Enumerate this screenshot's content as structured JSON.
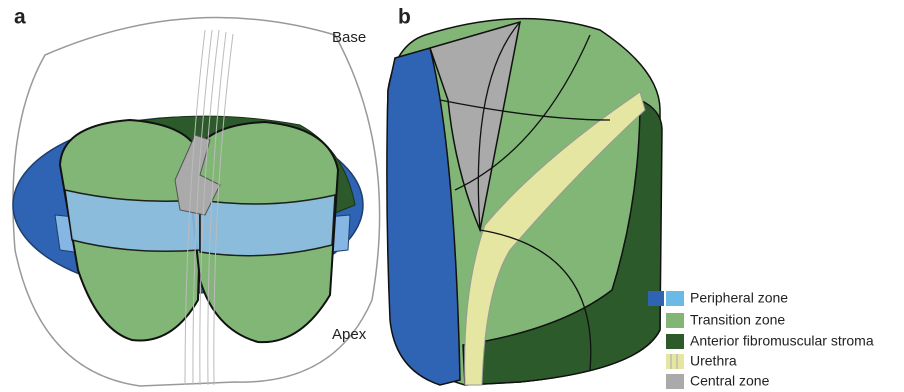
{
  "panels": [
    {
      "label": "a",
      "annotations": [
        "Base",
        "Apex"
      ]
    },
    {
      "label": "b"
    }
  ],
  "legend": [
    {
      "label": "Peripheral zone"
    },
    {
      "label": "Transition zone"
    },
    {
      "label": "Anterior fibromuscular stroma"
    },
    {
      "label": "Urethra"
    },
    {
      "label": "Central zone"
    }
  ]
}
